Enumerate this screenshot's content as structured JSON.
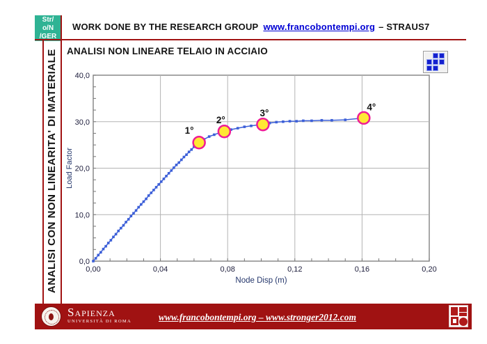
{
  "header": {
    "logo_lines": [
      "Str/",
      "o/N",
      "/GER"
    ],
    "title_prefix": "WORK DONE BY THE RESEARCH GROUP",
    "title_link": "www.francobontempi.org",
    "title_suffix": "– STRAUS7"
  },
  "sidebar": {
    "label": "ANALISI CON NON LINEARITA' DI MATERIALE"
  },
  "chart": {
    "title": "ANALISI NON LINEARE TELAIO IN ACCIAIO",
    "toolbar_icon": "blue-squares-grid-icon"
  },
  "chart_data": {
    "type": "line",
    "title": "ANALISI NON LINEARE TELAIO IN ACCIAIO",
    "xlabel": "Node Disp  (m)",
    "ylabel": "Load Factor",
    "xlim": [
      0,
      0.2
    ],
    "ylim": [
      0,
      40
    ],
    "x_tick_values": [
      0,
      0.04,
      0.08,
      0.12,
      0.16,
      0.2
    ],
    "x_tick_labels": [
      "0,00",
      "0,04",
      "0,08",
      "0,12",
      "0,16",
      "0,20"
    ],
    "y_tick_values": [
      0,
      10,
      20,
      30,
      40
    ],
    "y_tick_labels": [
      "0,0",
      "10,0",
      "20,0",
      "30,0",
      "40,0"
    ],
    "x_minor_step": 0.01,
    "y_minor_step": 2.5,
    "grid": true,
    "legend": "none",
    "series": [
      {
        "name": "load-displacement-path",
        "color": "#3C5FD8",
        "marker": "square",
        "points": [
          [
            0.0,
            0.0
          ],
          [
            0.0015,
            0.6
          ],
          [
            0.003,
            1.3
          ],
          [
            0.0045,
            1.9
          ],
          [
            0.006,
            2.6
          ],
          [
            0.0075,
            3.2
          ],
          [
            0.009,
            3.9
          ],
          [
            0.0105,
            4.5
          ],
          [
            0.012,
            5.2
          ],
          [
            0.0135,
            5.8
          ],
          [
            0.015,
            6.5
          ],
          [
            0.0165,
            7.1
          ],
          [
            0.018,
            7.7
          ],
          [
            0.0195,
            8.4
          ],
          [
            0.021,
            9.0
          ],
          [
            0.0225,
            9.7
          ],
          [
            0.024,
            10.3
          ],
          [
            0.0255,
            10.9
          ],
          [
            0.027,
            11.6
          ],
          [
            0.0285,
            12.2
          ],
          [
            0.03,
            12.8
          ],
          [
            0.0315,
            13.4
          ],
          [
            0.033,
            14.1
          ],
          [
            0.0345,
            14.7
          ],
          [
            0.036,
            15.3
          ],
          [
            0.0375,
            15.9
          ],
          [
            0.039,
            16.5
          ],
          [
            0.0405,
            17.1
          ],
          [
            0.042,
            17.7
          ],
          [
            0.0435,
            18.3
          ],
          [
            0.045,
            18.9
          ],
          [
            0.0465,
            19.5
          ],
          [
            0.048,
            20.1
          ],
          [
            0.0495,
            20.7
          ],
          [
            0.051,
            21.2
          ],
          [
            0.0525,
            21.8
          ],
          [
            0.054,
            22.4
          ],
          [
            0.0555,
            22.9
          ],
          [
            0.057,
            23.5
          ],
          [
            0.0585,
            24.0
          ],
          [
            0.06,
            24.6
          ],
          [
            0.063,
            25.5
          ],
          [
            0.066,
            26.2
          ],
          [
            0.069,
            26.8
          ],
          [
            0.072,
            27.2
          ],
          [
            0.075,
            27.6
          ],
          [
            0.078,
            27.9
          ],
          [
            0.082,
            28.3
          ],
          [
            0.086,
            28.6
          ],
          [
            0.09,
            28.9
          ],
          [
            0.094,
            29.1
          ],
          [
            0.098,
            29.3
          ],
          [
            0.101,
            29.4
          ],
          [
            0.105,
            29.7
          ],
          [
            0.109,
            29.9
          ],
          [
            0.113,
            30.0
          ],
          [
            0.117,
            30.1
          ],
          [
            0.121,
            30.1
          ],
          [
            0.125,
            30.2
          ],
          [
            0.13,
            30.2
          ],
          [
            0.136,
            30.3
          ],
          [
            0.142,
            30.3
          ],
          [
            0.15,
            30.4
          ],
          [
            0.161,
            30.8
          ]
        ]
      }
    ],
    "annotations": [
      {
        "label": "1°",
        "x": 0.063,
        "y": 25.5,
        "offset": [
          -14,
          -13
        ]
      },
      {
        "label": "2°",
        "x": 0.078,
        "y": 27.9,
        "offset": [
          -5,
          -12
        ]
      },
      {
        "label": "3°",
        "x": 0.101,
        "y": 29.4,
        "offset": [
          2,
          -12
        ]
      },
      {
        "label": "4°",
        "x": 0.161,
        "y": 30.8,
        "offset": [
          11,
          -11
        ]
      }
    ],
    "highlight_style": {
      "fill": "#FFE833",
      "stroke": "#EF1B96"
    }
  },
  "footer": {
    "university": "Sapienza",
    "university_sub": "Università di Roma",
    "link": "www.francobontempi.org – www.stronger2012.com"
  },
  "colors": {
    "accent_red": "#A11212",
    "logo_green": "#2FB394",
    "link_blue": "#0000D4",
    "curve_blue": "#3C5FD8",
    "grid_gray": "#B3B3B3",
    "frame_gray": "#8A8A8A",
    "tick_text": "#20203E",
    "axis_label_text": "#24366B"
  }
}
